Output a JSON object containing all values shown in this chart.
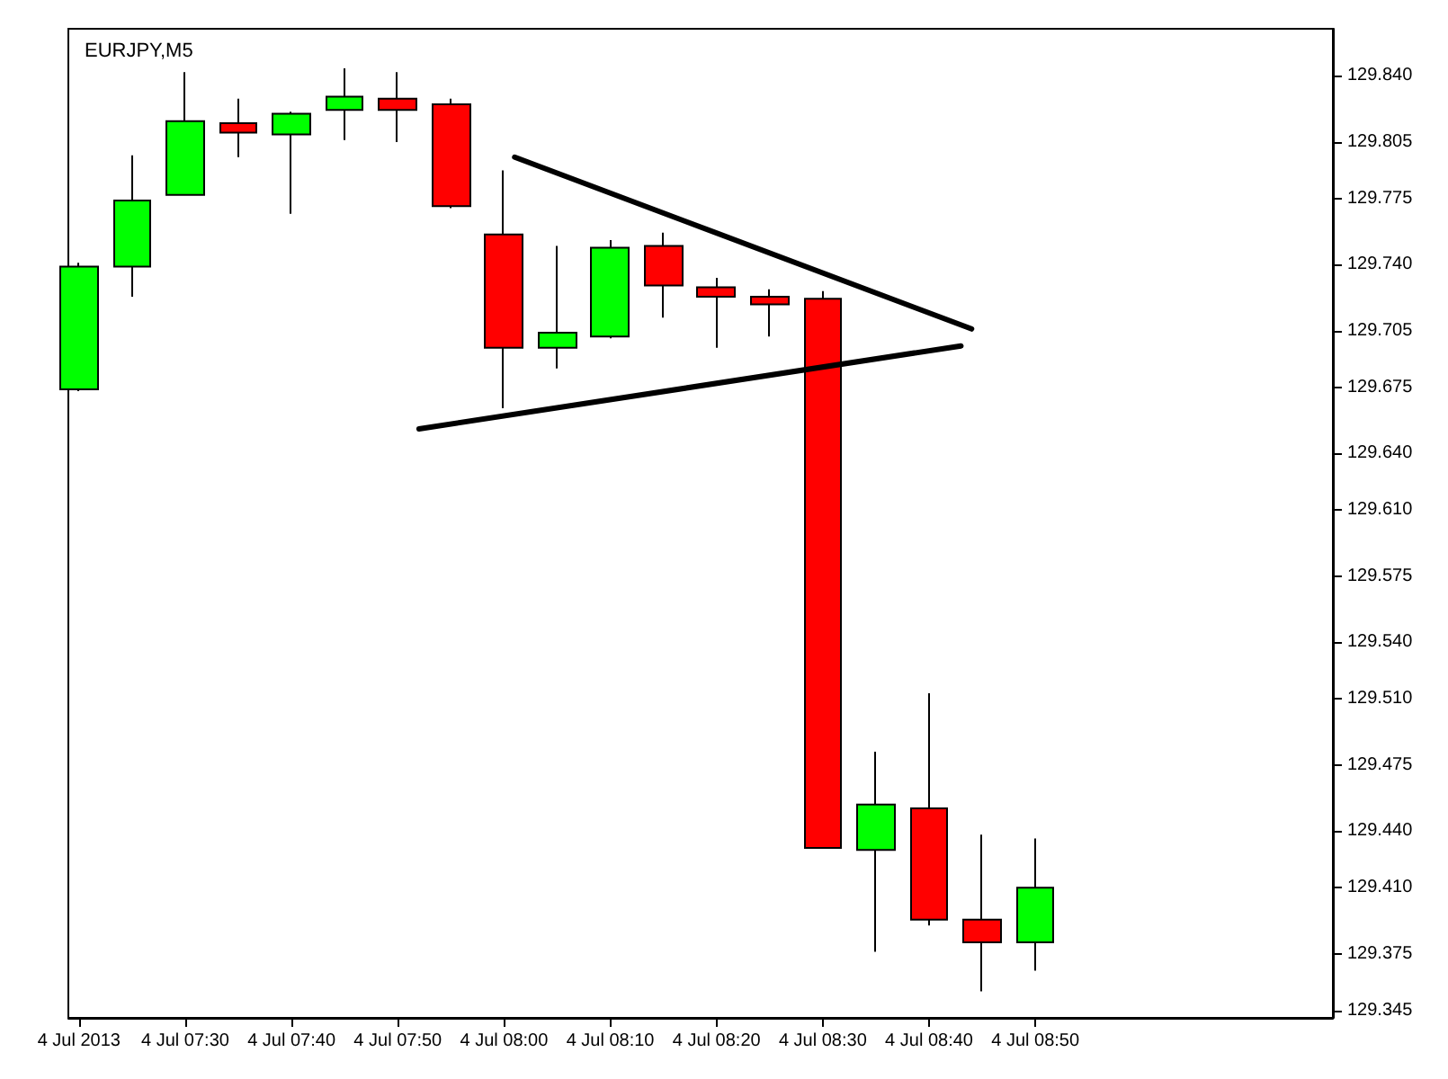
{
  "chart_data": {
    "type": "candlestick",
    "title": "EURJPY,M5",
    "x": [
      "2013-07-04T07:20",
      "2013-07-04T07:25",
      "2013-07-04T07:30",
      "2013-07-04T07:35",
      "2013-07-04T07:40",
      "2013-07-04T07:45",
      "2013-07-04T07:50",
      "2013-07-04T07:55",
      "2013-07-04T08:00",
      "2013-07-04T08:05",
      "2013-07-04T08:10",
      "2013-07-04T08:15",
      "2013-07-04T08:20",
      "2013-07-04T08:25",
      "2013-07-04T08:30",
      "2013-07-04T08:35",
      "2013-07-04T08:40",
      "2013-07-04T08:45",
      "2013-07-04T08:50"
    ],
    "ohlc": [
      [
        129.674,
        129.741,
        129.673,
        129.739
      ],
      [
        129.739,
        129.798,
        129.723,
        129.774
      ],
      [
        129.777,
        129.842,
        129.777,
        129.816
      ],
      [
        129.815,
        129.828,
        129.797,
        129.81
      ],
      [
        129.809,
        129.821,
        129.767,
        129.82
      ],
      [
        129.822,
        129.844,
        129.806,
        129.829
      ],
      [
        129.828,
        129.842,
        129.805,
        129.822
      ],
      [
        129.825,
        129.828,
        129.77,
        129.771
      ],
      [
        129.756,
        129.79,
        129.664,
        129.696
      ],
      [
        129.696,
        129.75,
        129.685,
        129.704
      ],
      [
        129.702,
        129.753,
        129.701,
        129.749
      ],
      [
        129.75,
        129.757,
        129.712,
        129.729
      ],
      [
        129.728,
        129.733,
        129.696,
        129.723
      ],
      [
        129.723,
        129.727,
        129.702,
        129.719
      ],
      [
        129.722,
        129.726,
        129.431,
        129.431
      ],
      [
        129.43,
        129.482,
        129.376,
        129.454
      ],
      [
        129.452,
        129.513,
        129.39,
        129.393
      ],
      [
        129.393,
        129.438,
        129.355,
        129.381
      ],
      [
        129.381,
        129.436,
        129.366,
        129.41
      ]
    ],
    "colors": [
      "#00ff00",
      "#00ff00",
      "#00ff00",
      "#ff0000",
      "#00ff00",
      "#00ff00",
      "#ff0000",
      "#ff0000",
      "#ff0000",
      "#00ff00",
      "#00ff00",
      "#ff0000",
      "#ff0000",
      "#ff0000",
      "#ff0000",
      "#00ff00",
      "#ff0000",
      "#ff0000",
      "#00ff00"
    ],
    "series": [
      {
        "type": "line",
        "color": "#000000",
        "x": [
          "2013-07-04T08:01",
          "2013-07-04T08:44"
        ],
        "values": [
          129.797,
          129.706
        ]
      },
      {
        "type": "line",
        "color": "#000000",
        "x": [
          "2013-07-04T07:52",
          "2013-07-04T08:43"
        ],
        "values": [
          129.653,
          129.697
        ]
      }
    ],
    "marker": "none",
    "xlim": [
      "2013-07-04T07:19",
      "2013-07-04T09:18"
    ],
    "xticks": [
      {
        "value": "2013-07-04T07:20",
        "label": "4 Jul 2013"
      },
      {
        "value": "2013-07-04T07:30",
        "label": "4 Jul 07:30"
      },
      {
        "value": "2013-07-04T07:40",
        "label": "4 Jul 07:40"
      },
      {
        "value": "2013-07-04T07:50",
        "label": "4 Jul 07:50"
      },
      {
        "value": "2013-07-04T08:00",
        "label": "4 Jul 08:00"
      },
      {
        "value": "2013-07-04T08:10",
        "label": "4 Jul 08:10"
      },
      {
        "value": "2013-07-04T08:20",
        "label": "4 Jul 08:20"
      },
      {
        "value": "2013-07-04T08:30",
        "label": "4 Jul 08:30"
      },
      {
        "value": "2013-07-04T08:40",
        "label": "4 Jul 08:40"
      },
      {
        "value": "2013-07-04T08:50",
        "label": "4 Jul 08:50"
      }
    ],
    "ylim": [
      129.341,
      129.865
    ],
    "yticks": [
      129.345,
      129.375,
      {
        "value": 129.41,
        "label": "129.410"
      },
      {
        "value": 129.44,
        "label": "129.440"
      },
      129.475,
      {
        "value": 129.51,
        "label": "129.510"
      },
      {
        "value": 129.54,
        "label": "129.540"
      },
      129.575,
      {
        "value": 129.61,
        "label": "129.610"
      },
      {
        "value": 129.64,
        "label": "129.640"
      },
      129.675,
      129.705,
      {
        "value": 129.74,
        "label": "129.740"
      },
      129.775,
      129.805,
      {
        "value": 129.84,
        "label": "129.840"
      }
    ],
    "grid": false
  }
}
